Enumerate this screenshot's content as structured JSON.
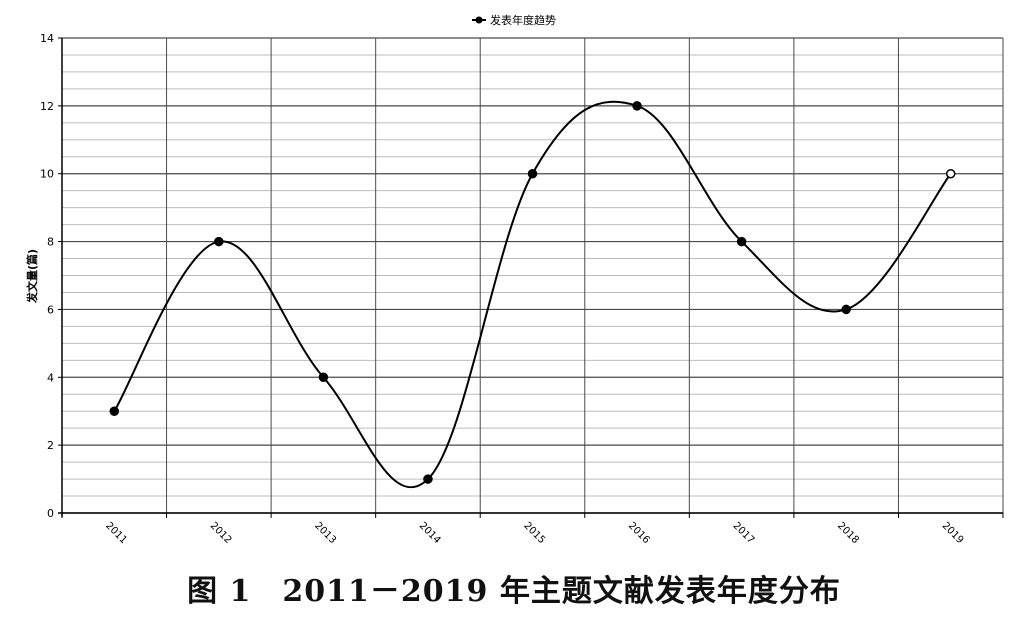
{
  "chart_data": {
    "type": "line",
    "legend": {
      "label": "发表年度趋势",
      "position": "top-center"
    },
    "ylabel": "发文量(篇)",
    "xlabel": "",
    "categories": [
      "2011",
      "2012",
      "2013",
      "2014",
      "2015",
      "2016",
      "2017",
      "2018",
      "2019"
    ],
    "series": [
      {
        "name": "发表年度趋势",
        "values": [
          3,
          8,
          4,
          1,
          10,
          12,
          8,
          6,
          10
        ]
      }
    ],
    "ylim": [
      0,
      14
    ],
    "yticks": [
      "0",
      "2",
      "4",
      "6",
      "8",
      "10",
      "12",
      "14"
    ],
    "grid": true,
    "smooth": true
  },
  "caption": "图 1　2011－2019 年主题文献发表年度分布",
  "colors": {
    "line": "#000000",
    "grid_major": "#4a4a4a",
    "grid_minor": "#bdbdbd",
    "marker_last_fill": "#ffffff"
  }
}
